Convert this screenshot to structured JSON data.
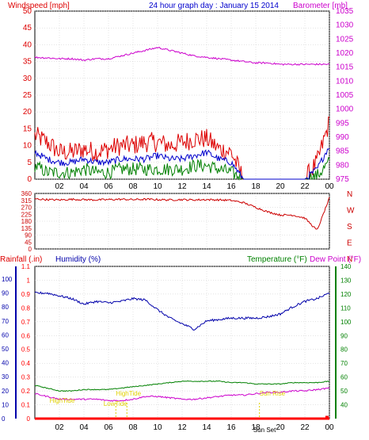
{
  "colors": {
    "wind": "#dd0000",
    "gust": "#0000cc",
    "wind_green": "#008000",
    "baro": "#cc00cc",
    "dir": "#cc0000",
    "humidity": "#0000aa",
    "temp": "#008000",
    "dew": "#cc00cc",
    "rain": "#ff0000",
    "sun": "#e0d000"
  },
  "header": {
    "windspeed": "Windspeed [mph]",
    "title": "24 hour graph day : January 15 2014",
    "barometer": "Barometer [mb]"
  },
  "panel2": {
    "compass": [
      "N",
      "W",
      "S",
      "E",
      "N"
    ]
  },
  "panel3": {
    "rainfall": "Rainfall (.in)",
    "humidity": "Humidity (%)",
    "temperature": "Temperature (°F)",
    "dewpoint": "Dew Point (°F)",
    "tide_labels": [
      "HighTide",
      "LowTide",
      "HighTide",
      "Sun Rise",
      "Sun Set"
    ]
  },
  "chart_data": [
    {
      "type": "line",
      "title": "24 hour graph day : January 15 2014",
      "xlabel": "",
      "x_ticks": [
        "02",
        "04",
        "06",
        "08",
        "10",
        "12",
        "14",
        "16",
        "18",
        "20",
        "22",
        "00"
      ],
      "ylabel": "Windspeed [mph]",
      "ylim": [
        0,
        50
      ],
      "y_ticks": [
        0,
        5,
        10,
        15,
        20,
        25,
        30,
        35,
        40,
        45,
        50
      ],
      "y2label": "Barometer [mb]",
      "y2lim": [
        975,
        1035
      ],
      "y2_ticks": [
        975,
        980,
        985,
        990,
        995,
        1000,
        1005,
        1010,
        1015,
        1020,
        1025,
        1030,
        1035
      ],
      "hours": [
        0,
        1,
        2,
        3,
        4,
        5,
        6,
        7,
        8,
        9,
        10,
        11,
        12,
        13,
        14,
        15,
        16,
        17,
        18,
        19,
        20,
        21,
        22,
        23,
        24
      ],
      "series": [
        {
          "role": "wind_gust",
          "values": [
            13,
            11,
            8,
            8,
            9,
            8,
            9,
            10,
            10,
            11,
            11,
            10,
            11,
            12,
            12,
            9,
            8,
            0,
            0,
            0,
            0,
            0,
            0,
            5,
            17
          ]
        },
        {
          "role": "wind_avg",
          "values": [
            8,
            6,
            5,
            5,
            6,
            5,
            5,
            6,
            6,
            6,
            7,
            6,
            6,
            7,
            8,
            6,
            5,
            0,
            0,
            0,
            0,
            0,
            0,
            3,
            10
          ]
        },
        {
          "role": "wind_low",
          "values": [
            4,
            2,
            2,
            2,
            3,
            2,
            2,
            3,
            3,
            3,
            3,
            3,
            3,
            4,
            4,
            3,
            2,
            0,
            0,
            0,
            0,
            0,
            0,
            1,
            5
          ]
        },
        {
          "role": "barometer",
          "values": [
            1018.5,
            1018.3,
            1018.0,
            1018.0,
            1017.5,
            1018.0,
            1018.0,
            1019.0,
            1020.0,
            1021.0,
            1022.0,
            1021.0,
            1020.0,
            1019.0,
            1018.5,
            1018.0,
            1017.5,
            1017.0,
            1016.5,
            1016.5,
            1016.0,
            1016.0,
            1016.0,
            1016.0,
            1016.0
          ]
        }
      ]
    },
    {
      "type": "line",
      "ylabel": "Wind Direction",
      "ylim": [
        0,
        360
      ],
      "y_ticks": [
        0,
        45,
        90,
        135,
        180,
        225,
        270,
        315,
        360
      ],
      "hours": [
        0,
        1,
        2,
        3,
        4,
        5,
        6,
        7,
        8,
        9,
        10,
        11,
        12,
        13,
        14,
        15,
        16,
        17,
        18,
        19,
        20,
        21,
        22,
        23,
        24
      ],
      "series": [
        {
          "role": "wind_direction",
          "values": [
            325,
            320,
            318,
            322,
            320,
            318,
            320,
            322,
            320,
            322,
            320,
            318,
            320,
            318,
            320,
            318,
            315,
            300,
            270,
            240,
            220,
            220,
            200,
            120,
            330
          ]
        }
      ]
    },
    {
      "type": "line",
      "x_ticks": [
        "02",
        "04",
        "06",
        "08",
        "10",
        "12",
        "14",
        "16",
        "18",
        "20",
        "22",
        "00"
      ],
      "ylabel": "Rainfall (.in)",
      "ylim": [
        0,
        1.1
      ],
      "y_ticks": [
        0,
        0.1,
        0.2,
        0.3,
        0.4,
        0.5,
        0.6,
        0.7,
        0.8,
        0.9,
        1,
        1.1
      ],
      "y_hum_lim": [
        0,
        100
      ],
      "y_hum_ticks": [
        0,
        10,
        20,
        30,
        40,
        50,
        60,
        70,
        80,
        90,
        100
      ],
      "y2label": "Temperature (°F)",
      "y2lim": [
        30,
        140
      ],
      "y2_ticks": [
        40,
        50,
        60,
        70,
        80,
        90,
        100,
        110,
        120,
        130,
        140
      ],
      "hours": [
        0,
        1,
        2,
        3,
        4,
        5,
        6,
        7,
        8,
        9,
        10,
        11,
        12,
        13,
        14,
        15,
        16,
        17,
        18,
        19,
        20,
        21,
        22,
        23,
        24
      ],
      "series": [
        {
          "role": "humidity",
          "values": [
            90,
            90,
            88,
            86,
            82,
            84,
            83,
            84,
            86,
            85,
            78,
            72,
            68,
            64,
            70,
            71,
            72,
            72,
            72,
            73,
            75,
            80,
            84,
            86,
            90
          ]
        },
        {
          "role": "temperature",
          "values": [
            54,
            52,
            50,
            50,
            51,
            51,
            51,
            52,
            53,
            54,
            55,
            56,
            57,
            57,
            57,
            57,
            56,
            56,
            55,
            55,
            55,
            56,
            56,
            56,
            57
          ]
        },
        {
          "role": "dew_point",
          "values": [
            48,
            46,
            44,
            44,
            44,
            44,
            43,
            43,
            44,
            46,
            46,
            45,
            44,
            44,
            45,
            46,
            47,
            47,
            48,
            49,
            49,
            50,
            50,
            51,
            52
          ]
        },
        {
          "role": "rainfall",
          "values": [
            0,
            0,
            0,
            0,
            0,
            0,
            0,
            0,
            0,
            0,
            0,
            0,
            0,
            0,
            0,
            0,
            0,
            0,
            0,
            0,
            0,
            0,
            0,
            0,
            0.02
          ]
        }
      ]
    }
  ]
}
